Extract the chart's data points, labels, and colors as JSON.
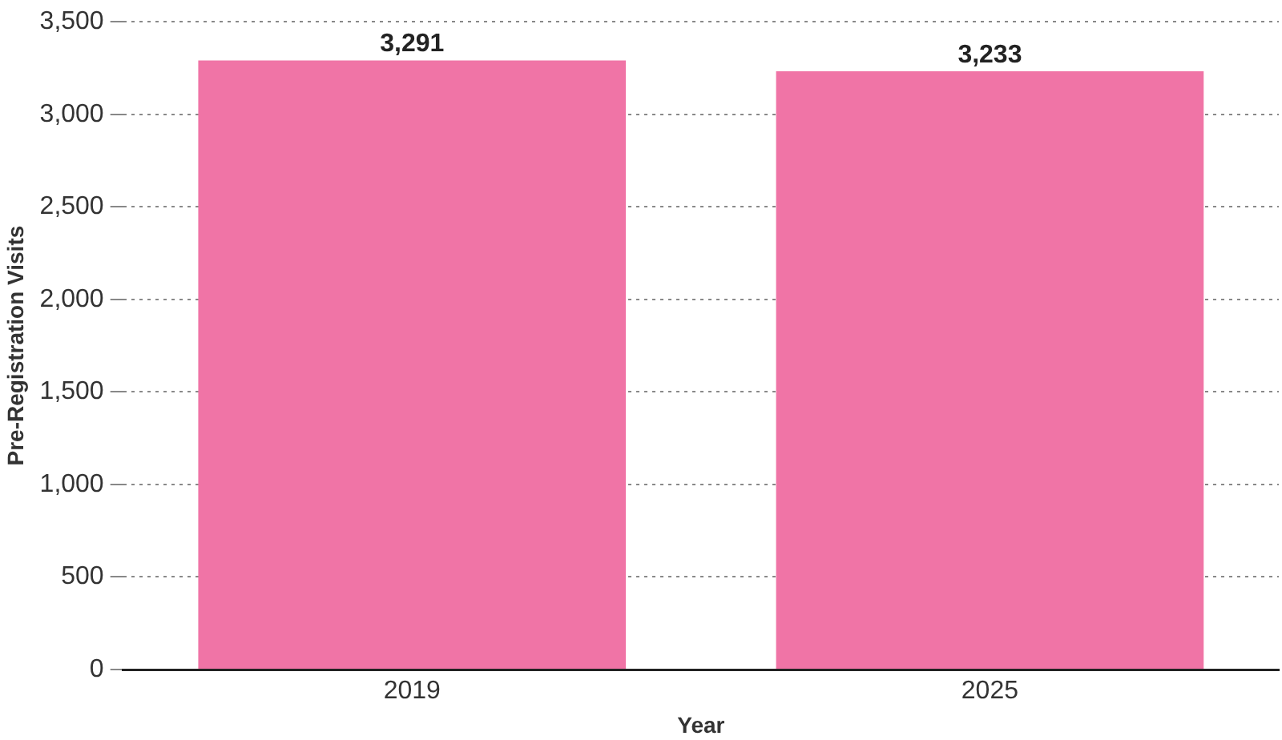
{
  "chart_data": {
    "type": "bar",
    "xlabel": "Year",
    "ylabel": "Pre-Registration Visits",
    "categories": [
      "2019",
      "2025"
    ],
    "values": [
      3291,
      3233
    ],
    "value_labels": [
      "3,291",
      "3,233"
    ],
    "color": "#f074a6",
    "ylim": [
      0,
      3500
    ],
    "yticks": [
      0,
      500,
      {
        "value": 1000,
        "label": "1,000"
      },
      {
        "value": 1500,
        "label": "1,500"
      },
      {
        "value": 2000,
        "label": "2,000"
      },
      {
        "value": 2500,
        "label": "2,500"
      },
      {
        "value": 3000,
        "label": "3,000"
      },
      {
        "value": 3500,
        "label": "3,500"
      }
    ],
    "grid": "y"
  }
}
